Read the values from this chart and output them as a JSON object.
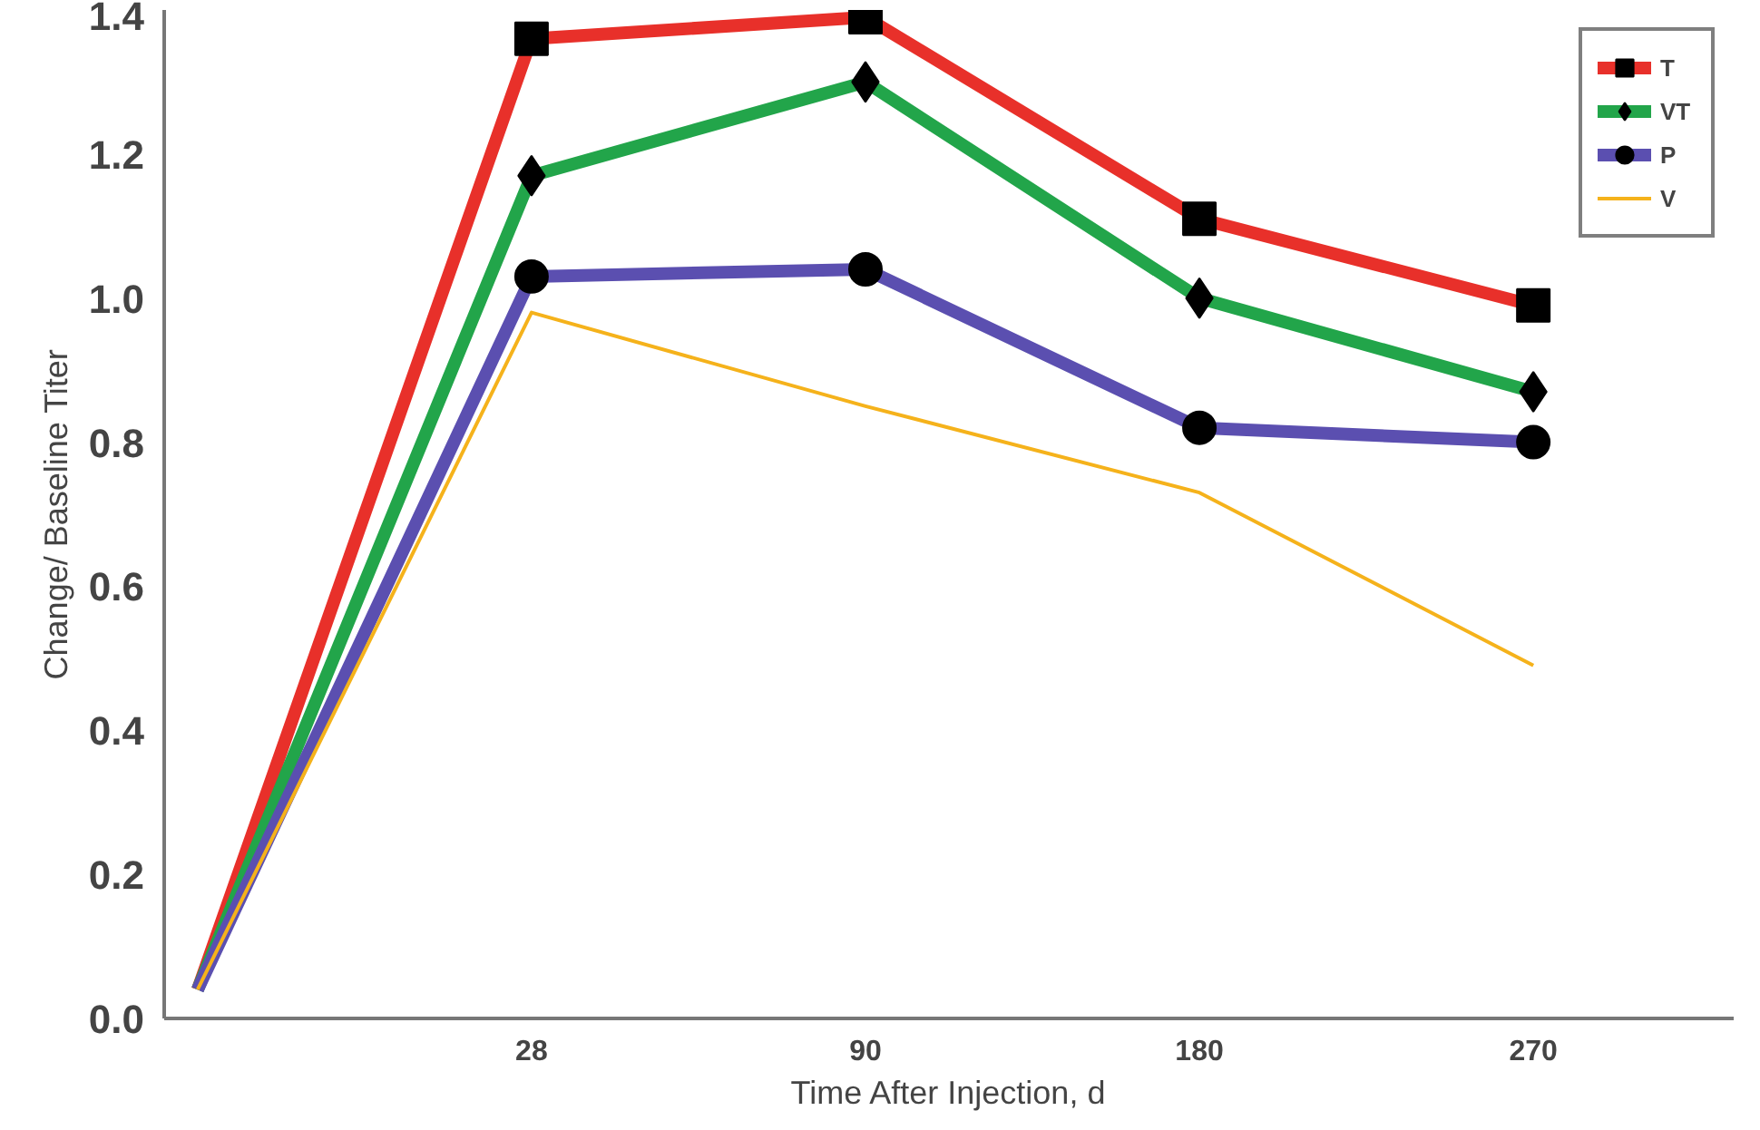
{
  "chart_data": {
    "type": "line",
    "xlabel": "Time After Injection, d",
    "ylabel": "Change/ Baseline Titer",
    "categories": [
      null,
      "28",
      "90",
      "180",
      "270"
    ],
    "ylim": [
      0,
      1.4
    ],
    "yticks": [
      {
        "value": 0,
        "label": "0.0"
      },
      {
        "value": 0.2,
        "label": "0.2"
      },
      {
        "value": 0.4,
        "label": "0.4"
      },
      {
        "value": 0.6,
        "label": "0.6"
      },
      {
        "value": 0.8,
        "label": "0.8"
      },
      {
        "value": 1.0,
        "label": "1.0"
      },
      {
        "value": 1.2,
        "label": "1.2"
      },
      {
        "value": 1.4,
        "label": "1.4"
      }
    ],
    "grid": false,
    "legend": "top right",
    "series": [
      {
        "name": "T",
        "color": "#e8302a",
        "marker": "square",
        "values": [
          0.04,
          1.36,
          1.39,
          1.11,
          0.99
        ]
      },
      {
        "name": "VT",
        "color": "#22a54a",
        "marker": "diamond",
        "values": [
          0.04,
          1.17,
          1.3,
          1.0,
          0.87
        ]
      },
      {
        "name": "P",
        "color": "#5b4fb0",
        "marker": "circle",
        "values": [
          0.04,
          1.03,
          1.04,
          0.82,
          0.8
        ]
      },
      {
        "name": "V",
        "color": "#f5b21b",
        "marker": "none",
        "values": [
          0.04,
          0.98,
          0.85,
          0.73,
          0.49
        ]
      }
    ]
  }
}
